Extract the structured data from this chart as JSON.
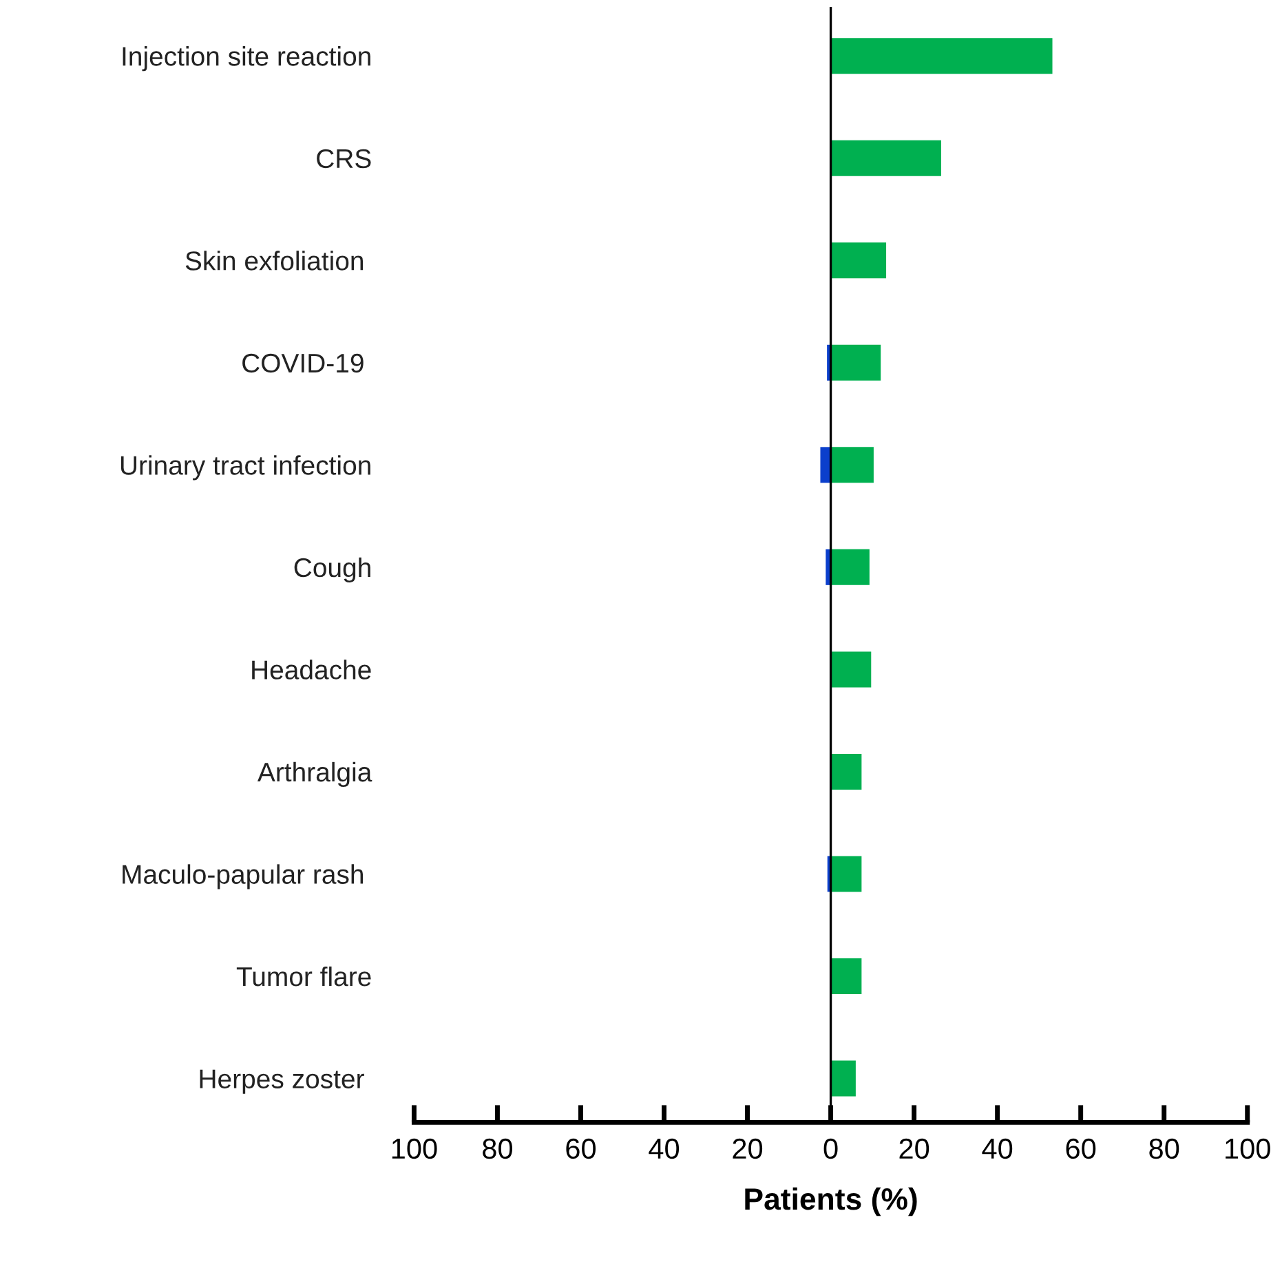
{
  "chart_data": {
    "type": "bar",
    "orientation": "horizontal",
    "xlabel": "Patients (%)",
    "categories": [
      "Injection site reaction",
      "CRS",
      "Skin exfoliation ",
      "COVID-19 ",
      "Urinary tract infection",
      "Cough",
      "Headache",
      "Arthralgia",
      "Maculo-papular rash ",
      "Tumor flare",
      "Herpes zoster "
    ],
    "series": [
      {
        "color": "#00b050",
        "values": [
          53.2,
          26.5,
          13.3,
          12.0,
          10.3,
          9.3,
          9.7,
          7.4,
          7.4,
          7.4,
          6.0
        ]
      },
      {
        "color": "#0b3fcc",
        "values": [
          null,
          null,
          null,
          -0.9,
          -2.5,
          -1.2,
          null,
          null,
          -0.8,
          null,
          null
        ]
      }
    ],
    "xlim": [
      -100,
      100
    ],
    "xticks": [
      {
        "value": -100,
        "label": "100"
      },
      {
        "value": -80,
        "label": "80"
      },
      {
        "value": -60,
        "label": "60"
      },
      {
        "value": -40,
        "label": "40"
      },
      {
        "value": -20,
        "label": "20"
      },
      0,
      20,
      40,
      60,
      80,
      100
    ],
    "ref_lines": [
      {
        "axis": "x",
        "value": 0,
        "color": "#000000"
      }
    ],
    "grid": false,
    "legend": false
  }
}
